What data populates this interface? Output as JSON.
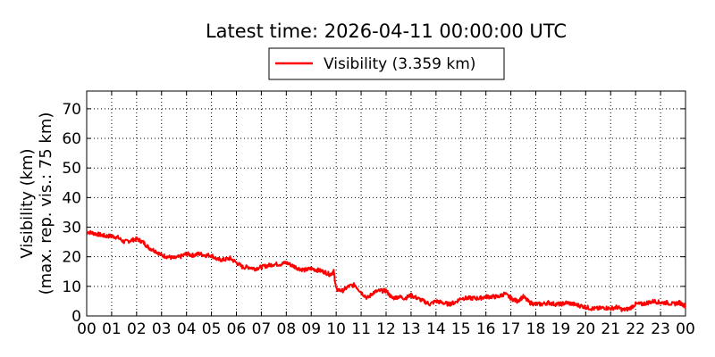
{
  "chart_data": {
    "type": "line",
    "title": "Latest time: 2026-04-11 00:00:00 UTC",
    "ylabel_line1": "Visibility (km)",
    "ylabel_line2": "(max. rep. vis.: 75 km)",
    "xlabel": "",
    "ylim": [
      0,
      76
    ],
    "yticks": [
      0,
      10,
      20,
      30,
      40,
      50,
      60,
      70
    ],
    "xlim": [
      0,
      24
    ],
    "xticks": [
      "00",
      "01",
      "02",
      "03",
      "04",
      "05",
      "06",
      "07",
      "08",
      "09",
      "10",
      "11",
      "12",
      "13",
      "14",
      "15",
      "16",
      "17",
      "18",
      "19",
      "20",
      "21",
      "22",
      "23",
      "00"
    ],
    "grid": true,
    "legend_position": "top-center",
    "colors": {
      "series": "#ff0000"
    },
    "series": [
      {
        "name": "Visibility (3.359 km)",
        "x": [
          0.0,
          0.25,
          0.5,
          0.75,
          1.0,
          1.25,
          1.5,
          1.75,
          2.0,
          2.25,
          2.5,
          2.75,
          3.0,
          3.25,
          3.5,
          3.75,
          4.0,
          4.25,
          4.5,
          4.75,
          5.0,
          5.25,
          5.5,
          5.75,
          6.0,
          6.25,
          6.5,
          6.75,
          7.0,
          7.25,
          7.5,
          7.75,
          8.0,
          8.25,
          8.5,
          8.75,
          9.0,
          9.25,
          9.5,
          9.75,
          9.9,
          10.0,
          10.25,
          10.5,
          10.75,
          11.0,
          11.25,
          11.5,
          11.75,
          12.0,
          12.25,
          12.5,
          12.75,
          13.0,
          13.25,
          13.5,
          13.75,
          14.0,
          14.25,
          14.5,
          14.75,
          15.0,
          15.25,
          15.5,
          15.75,
          16.0,
          16.25,
          16.5,
          16.75,
          17.0,
          17.25,
          17.5,
          17.75,
          18.0,
          18.25,
          18.5,
          18.75,
          19.0,
          19.25,
          19.5,
          19.75,
          20.0,
          20.25,
          20.5,
          20.75,
          21.0,
          21.25,
          21.5,
          21.75,
          22.0,
          22.25,
          22.5,
          22.75,
          23.0,
          23.25,
          23.5,
          23.75,
          24.0
        ],
        "values": [
          28.5,
          28,
          27.5,
          27,
          27,
          26.5,
          25,
          25.5,
          26,
          25,
          23,
          22,
          20.5,
          20,
          19.5,
          20,
          21,
          20.5,
          21,
          20.5,
          20.5,
          19,
          19,
          19.5,
          18,
          16.5,
          16.5,
          16,
          16.5,
          17,
          17.5,
          17.5,
          18,
          17,
          16,
          15.5,
          16,
          15.5,
          15,
          14,
          15,
          9,
          8.5,
          10,
          10.5,
          8,
          6,
          8,
          8.5,
          8.5,
          6,
          6.5,
          6,
          7,
          6,
          5,
          4,
          5,
          4.5,
          4,
          4.5,
          6,
          6,
          6,
          6,
          6.5,
          6.5,
          6.5,
          7.5,
          6,
          5,
          6.5,
          4.5,
          4,
          4,
          4.5,
          4,
          4,
          4.5,
          4,
          3.5,
          3,
          2.5,
          2.5,
          2.8,
          2.5,
          3,
          2,
          2.5,
          4,
          4,
          4.5,
          5,
          4.5,
          4.5,
          4,
          4.5,
          3.4
        ]
      }
    ]
  }
}
